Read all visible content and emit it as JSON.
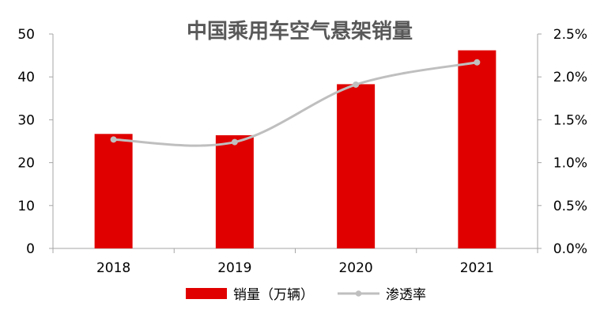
{
  "chart_data": {
    "type": "bar",
    "title": "中国乘用车空气悬架销量",
    "categories": [
      "2018",
      "2019",
      "2020",
      "2021"
    ],
    "series": [
      {
        "name": "销量（万辆）",
        "type": "bar",
        "axis": "left",
        "values": [
          26.7,
          26.4,
          38.3,
          46.2
        ]
      },
      {
        "name": "渗透率",
        "type": "line",
        "axis": "right",
        "smooth": true,
        "values": [
          1.27,
          1.24,
          1.91,
          2.17
        ]
      }
    ],
    "y_left": {
      "min": 0,
      "max": 50,
      "ticks": [
        "0",
        "10",
        "20",
        "30",
        "40",
        "50"
      ]
    },
    "y_right": {
      "min": 0,
      "max": 2.5,
      "ticks": [
        "0.0%",
        "0.5%",
        "1.0%",
        "1.5%",
        "2.0%",
        "2.5%"
      ]
    },
    "legend_position": "bottom",
    "grid": false,
    "colors": {
      "bar": "#E00000",
      "line": "#BFBFBF",
      "axis": "#A6A6A6",
      "title": "#595959"
    }
  }
}
